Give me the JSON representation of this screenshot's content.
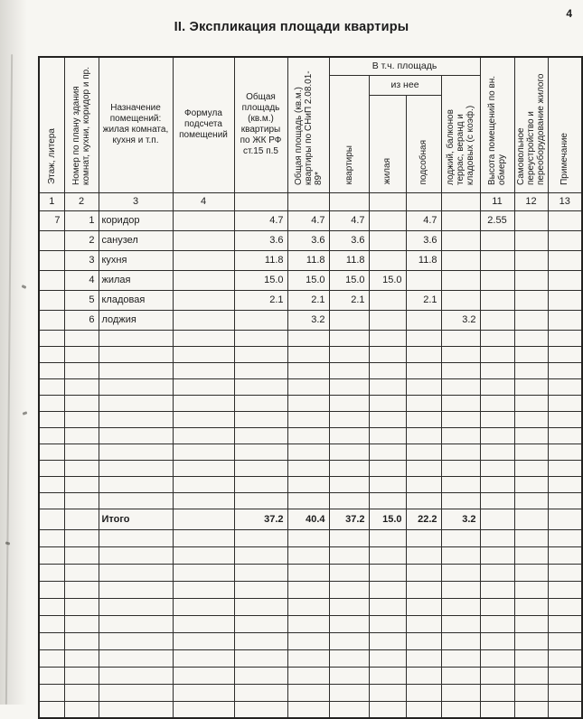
{
  "page": {
    "number": "4",
    "title": "II. Экспликация площади квартиры"
  },
  "table": {
    "group_headers": {
      "incl_area": "В т.ч. площадь",
      "of_it": "из нее"
    },
    "col_labels": [
      "Этаж, литера",
      "Номер по плану здания комнат, кухни, коридор и пр.",
      "Назначение помещений: жилая комната, кухня и т.п.",
      "Формула подсчета помещений",
      "Общая площадь (кв.м.) квартиры по ЖК РФ ст.15 п.5",
      "Общая площадь (кв.м.) квартиры по СНиП 2.08.01-89*",
      "квартиры",
      "жилая",
      "подсобная",
      "лоджий, балконов террас, веранд и кладовых (с коэф.)",
      "Высота помещений по вн. обмеру",
      "Самовольное переустройство и переоборудование жилого",
      "Примечание"
    ],
    "col_nums": [
      "1",
      "2",
      "3",
      "4",
      "",
      "",
      "",
      "",
      "",
      "",
      "11",
      "12",
      "13"
    ],
    "rows": [
      [
        "7",
        "1",
        "коридор",
        "",
        "4.7",
        "4.7",
        "4.7",
        "",
        "4.7",
        "",
        "2.55",
        "",
        ""
      ],
      [
        "",
        "2",
        "санузел",
        "",
        "3.6",
        "3.6",
        "3.6",
        "",
        "3.6",
        "",
        "",
        "",
        ""
      ],
      [
        "",
        "3",
        "кухня",
        "",
        "11.8",
        "11.8",
        "11.8",
        "",
        "11.8",
        "",
        "",
        "",
        ""
      ],
      [
        "",
        "4",
        "жилая",
        "",
        "15.0",
        "15.0",
        "15.0",
        "15.0",
        "",
        "",
        "",
        "",
        ""
      ],
      [
        "",
        "5",
        "кладовая",
        "",
        "2.1",
        "2.1",
        "2.1",
        "",
        "2.1",
        "",
        "",
        "",
        ""
      ],
      [
        "",
        "6",
        "лоджия",
        "",
        "",
        "3.2",
        "",
        "",
        "",
        "3.2",
        "",
        "",
        ""
      ]
    ],
    "total_row": [
      "",
      "",
      "Итого",
      "",
      "37.2",
      "40.4",
      "37.2",
      "15.0",
      "22.2",
      "3.2",
      "",
      "",
      ""
    ]
  }
}
